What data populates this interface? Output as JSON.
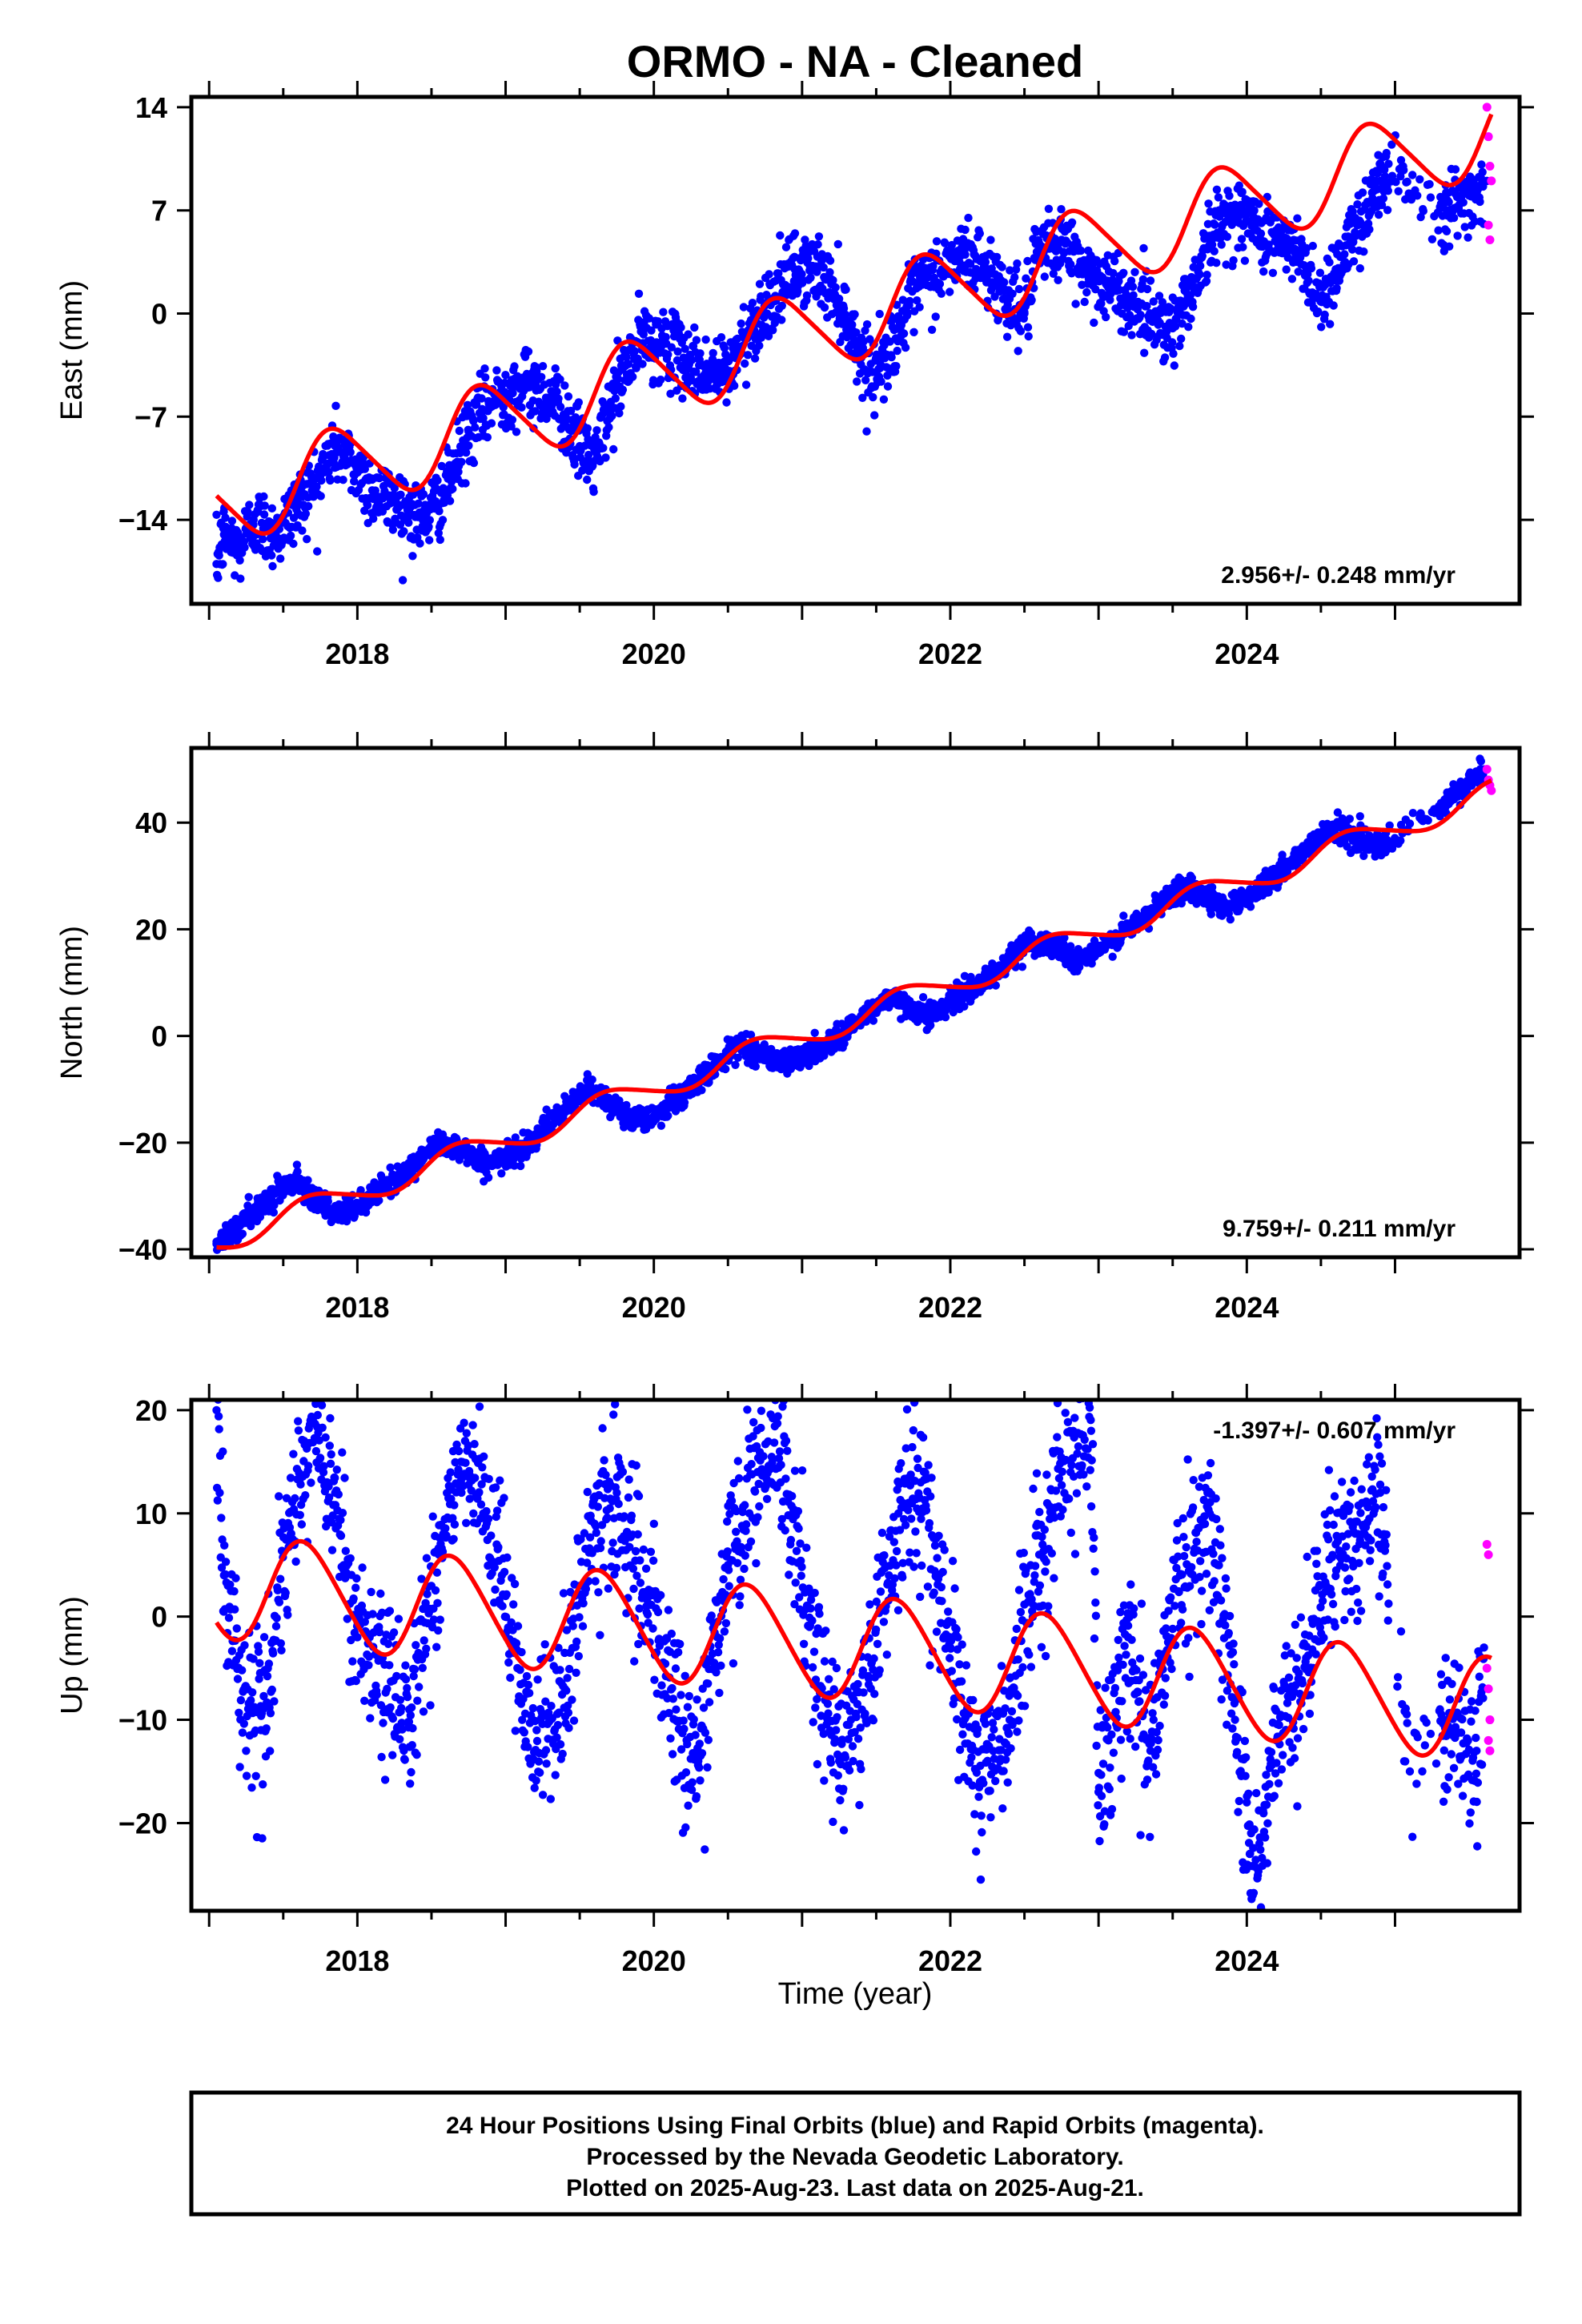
{
  "chart_data": {
    "type": "scatter",
    "title": "ORMO  - NA - Cleaned",
    "xlabel": "Time (year)",
    "xlim": [
      2016.88,
      2025.84
    ],
    "x_ticks": [
      2018,
      2020,
      2022,
      2024
    ],
    "colors": {
      "final": "#0000ff",
      "rapid": "#ff00ff",
      "fit": "#ff0000"
    },
    "panels": [
      {
        "name": "east",
        "ylabel": "East (mm)",
        "ylim": [
          -19.7,
          14.7
        ],
        "y_ticks": [
          14,
          7,
          0,
          -7,
          -14
        ],
        "y_tick_labels": [
          "14",
          "7",
          "0",
          "−7",
          "−14"
        ],
        "rate_label": "2.956+/- 0.248 mm/yr",
        "rate_position": "bottom-right",
        "fit": {
          "t0": 2017.05,
          "t1": 2025.65,
          "start": -13.0,
          "rate": 2.956,
          "annual_amp": 2.8,
          "annual_phase_yr": 0.6,
          "semi_amp": 0.4
        },
        "series": [
          {
            "name": "Final Orbits",
            "points": [
              [
                2017.05,
                -17
              ],
              [
                2017.1,
                -15
              ],
              [
                2017.2,
                -16
              ],
              [
                2017.3,
                -14
              ],
              [
                2017.45,
                -15
              ],
              [
                2017.6,
                -13
              ],
              [
                2017.75,
                -11
              ],
              [
                2017.85,
                -9
              ],
              [
                2017.95,
                -10
              ],
              [
                2018.1,
                -12
              ],
              [
                2018.3,
                -13
              ],
              [
                2018.45,
                -14
              ],
              [
                2018.6,
                -12
              ],
              [
                2018.75,
                -8
              ],
              [
                2018.9,
                -6
              ],
              [
                2019.05,
                -5
              ],
              [
                2019.2,
                -5
              ],
              [
                2019.35,
                -6
              ],
              [
                2019.5,
                -9
              ],
              [
                2019.6,
                -10
              ],
              [
                2019.75,
                -5
              ],
              [
                2019.9,
                -2
              ],
              [
                2020.05,
                -2
              ],
              [
                2020.2,
                -3
              ],
              [
                2020.35,
                -4
              ],
              [
                2020.5,
                -4
              ],
              [
                2020.65,
                -1
              ],
              [
                2020.8,
                1
              ],
              [
                2020.95,
                3
              ],
              [
                2021.1,
                3
              ],
              [
                2021.25,
                1
              ],
              [
                2021.4,
                -3
              ],
              [
                2021.5,
                -4
              ],
              [
                2021.65,
                -1
              ],
              [
                2021.8,
                2
              ],
              [
                2021.95,
                3
              ],
              [
                2022.1,
                4
              ],
              [
                2022.25,
                3
              ],
              [
                2022.4,
                1
              ],
              [
                2022.5,
                0
              ],
              [
                2022.6,
                4
              ],
              [
                2022.75,
                5
              ],
              [
                2022.9,
                3
              ],
              [
                2023.05,
                2
              ],
              [
                2023.2,
                1
              ],
              [
                2023.35,
                0
              ],
              [
                2023.5,
                -1
              ],
              [
                2023.6,
                1
              ],
              [
                2023.75,
                5
              ],
              [
                2023.9,
                7
              ],
              [
                2024.05,
                6
              ],
              [
                2024.2,
                5
              ],
              [
                2024.35,
                4
              ],
              [
                2024.5,
                1
              ],
              [
                2024.6,
                3
              ],
              [
                2024.75,
                6
              ],
              [
                2024.9,
                9
              ],
              [
                2025.05,
                10
              ],
              [
                2025.15,
                8
              ],
              [
                2025.35,
                7
              ],
              [
                2025.5,
                8
              ],
              [
                2025.62,
                9
              ]
            ]
          },
          {
            "name": "Rapid Orbits",
            "points": [
              [
                2025.62,
                14
              ],
              [
                2025.63,
                12
              ],
              [
                2025.64,
                10
              ],
              [
                2025.65,
                9
              ],
              [
                2025.63,
                6
              ],
              [
                2025.64,
                5
              ]
            ]
          }
        ]
      },
      {
        "name": "north",
        "ylabel": "North (mm)",
        "ylim": [
          -41.5,
          54.0
        ],
        "y_ticks": [
          40,
          20,
          0,
          -20,
          -40
        ],
        "y_tick_labels": [
          "40",
          "20",
          "0",
          "−20",
          "−40"
        ],
        "rate_label": "9.759+/- 0.211 mm/yr",
        "rate_position": "bottom-right",
        "fit": {
          "t0": 2017.05,
          "t1": 2025.65,
          "start": -38.5,
          "rate": 9.759,
          "annual_amp": 2.4,
          "annual_phase_yr": 0.45,
          "semi_amp": 0.3
        },
        "series": [
          {
            "name": "Final Orbits",
            "points": [
              [
                2017.05,
                -39
              ],
              [
                2017.15,
                -37
              ],
              [
                2017.3,
                -33
              ],
              [
                2017.45,
                -29
              ],
              [
                2017.6,
                -27
              ],
              [
                2017.75,
                -31
              ],
              [
                2017.85,
                -34
              ],
              [
                2018.0,
                -32
              ],
              [
                2018.2,
                -28
              ],
              [
                2018.4,
                -24
              ],
              [
                2018.55,
                -20
              ],
              [
                2018.7,
                -21
              ],
              [
                2018.85,
                -24
              ],
              [
                2019.0,
                -23
              ],
              [
                2019.2,
                -19
              ],
              [
                2019.4,
                -14
              ],
              [
                2019.55,
                -10
              ],
              [
                2019.7,
                -12
              ],
              [
                2019.85,
                -16
              ],
              [
                2020.0,
                -15
              ],
              [
                2020.2,
                -11
              ],
              [
                2020.4,
                -6
              ],
              [
                2020.55,
                -2
              ],
              [
                2020.7,
                -3
              ],
              [
                2020.85,
                -5
              ],
              [
                2021.0,
                -4
              ],
              [
                2021.2,
                -1
              ],
              [
                2021.4,
                3
              ],
              [
                2021.55,
                7
              ],
              [
                2021.7,
                6
              ],
              [
                2021.85,
                4
              ],
              [
                2022.0,
                6
              ],
              [
                2022.2,
                10
              ],
              [
                2022.4,
                14
              ],
              [
                2022.55,
                18
              ],
              [
                2022.7,
                17
              ],
              [
                2022.85,
                14
              ],
              [
                2023.0,
                16
              ],
              [
                2023.2,
                20
              ],
              [
                2023.4,
                24
              ],
              [
                2023.55,
                28
              ],
              [
                2023.7,
                27
              ],
              [
                2023.85,
                24
              ],
              [
                2024.0,
                26
              ],
              [
                2024.2,
                30
              ],
              [
                2024.4,
                35
              ],
              [
                2024.55,
                39
              ],
              [
                2024.7,
                38
              ],
              [
                2024.9,
                35
              ],
              [
                2025.05,
                38
              ],
              [
                2025.25,
                42
              ],
              [
                2025.45,
                46
              ],
              [
                2025.6,
                50
              ]
            ]
          },
          {
            "name": "Rapid Orbits",
            "points": [
              [
                2025.62,
                50
              ],
              [
                2025.63,
                48
              ],
              [
                2025.64,
                47
              ],
              [
                2025.65,
                46
              ]
            ]
          }
        ]
      },
      {
        "name": "up",
        "ylabel": "Up (mm)",
        "ylim": [
          -28.5,
          21.0
        ],
        "y_ticks": [
          20,
          10,
          0,
          -10,
          -20
        ],
        "y_tick_labels": [
          "20",
          "10",
          "0",
          "−10",
          "−20"
        ],
        "rate_label": "-1.397+/- 0.607 mm/yr",
        "rate_position": "top-right",
        "fit": {
          "t0": 2017.05,
          "t1": 2025.65,
          "start": 3.0,
          "rate": -1.397,
          "annual_amp": 5.0,
          "annual_phase_yr": 0.4,
          "semi_amp": 0.5
        },
        "series": [
          {
            "name": "Final Orbits",
            "points": [
              [
                2017.05,
                20
              ],
              [
                2017.1,
                4
              ],
              [
                2017.2,
                -5
              ],
              [
                2017.35,
                -11
              ],
              [
                2017.55,
                8
              ],
              [
                2017.7,
                19
              ],
              [
                2017.85,
                12
              ],
              [
                2018.0,
                -2
              ],
              [
                2018.2,
                -7
              ],
              [
                2018.35,
                -9
              ],
              [
                2018.55,
                6
              ],
              [
                2018.7,
                15
              ],
              [
                2018.85,
                10
              ],
              [
                2019.0,
                2
              ],
              [
                2019.2,
                -13
              ],
              [
                2019.4,
                -7
              ],
              [
                2019.6,
                9
              ],
              [
                2019.75,
                12
              ],
              [
                2019.95,
                1
              ],
              [
                2020.15,
                -9
              ],
              [
                2020.3,
                -14
              ],
              [
                2020.5,
                5
              ],
              [
                2020.7,
                14
              ],
              [
                2020.85,
                16
              ],
              [
                2021.05,
                -1
              ],
              [
                2021.25,
                -14
              ],
              [
                2021.45,
                -6
              ],
              [
                2021.65,
                10
              ],
              [
                2021.8,
                13
              ],
              [
                2022.0,
                -3
              ],
              [
                2022.2,
                -16
              ],
              [
                2022.4,
                -10
              ],
              [
                2022.6,
                6
              ],
              [
                2022.75,
                15
              ],
              [
                2022.95,
                18
              ],
              [
                2023.0,
                -17
              ],
              [
                2023.2,
                -2
              ],
              [
                2023.35,
                -13
              ],
              [
                2023.55,
                4
              ],
              [
                2023.75,
                10
              ],
              [
                2024.0,
                -18
              ],
              [
                2024.02,
                -23
              ],
              [
                2024.04,
                -27
              ],
              [
                2024.2,
                -12
              ],
              [
                2024.4,
                -4
              ],
              [
                2024.6,
                7
              ],
              [
                2024.75,
                8
              ],
              [
                2024.9,
                12
              ],
              [
                2025.1,
                -15
              ],
              [
                2025.35,
                -10
              ],
              [
                2025.55,
                -13
              ],
              [
                2025.6,
                -3
              ]
            ]
          },
          {
            "name": "Rapid Orbits",
            "points": [
              [
                2025.62,
                7
              ],
              [
                2025.63,
                6
              ],
              [
                2025.62,
                -5
              ],
              [
                2025.63,
                -7
              ],
              [
                2025.64,
                -10
              ],
              [
                2025.63,
                -12
              ],
              [
                2025.64,
                -13
              ]
            ]
          }
        ]
      }
    ],
    "footer": [
      "24 Hour Positions Using Final Orbits (blue) and Rapid Orbits (magenta).",
      "Processed by the Nevada Geodetic Laboratory.",
      "Plotted on 2025-Aug-23. Last data on 2025-Aug-21."
    ]
  }
}
